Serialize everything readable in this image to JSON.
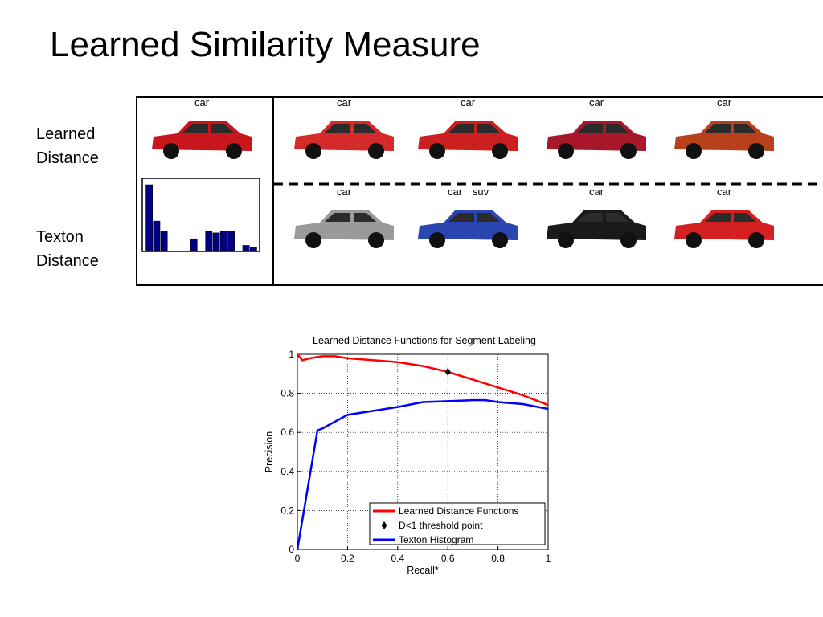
{
  "title": "Learned Similarity Measure",
  "rows": [
    {
      "label": "Learned Distance",
      "images": [
        [
          "car"
        ],
        [
          "car"
        ],
        [
          "car"
        ],
        [
          "car"
        ],
        [
          "car"
        ]
      ]
    },
    {
      "label": "Texton Distance",
      "images": [
        [
          "car"
        ],
        [
          "car",
          "suv"
        ],
        [
          "car"
        ],
        [
          "car"
        ]
      ]
    }
  ],
  "chart_data": [
    {
      "type": "line",
      "title": "Learned Distance Functions for Segment Labeling",
      "x_label": "Recall*",
      "y_label": "Precision",
      "xlim": [
        0,
        1
      ],
      "ylim": [
        0,
        1
      ],
      "xticks": [
        0,
        0.2,
        0.4,
        0.6,
        0.8,
        1
      ],
      "yticks": [
        0,
        0.2,
        0.4,
        0.6,
        0.8,
        1
      ],
      "grid": true,
      "legend": "lower right",
      "series": [
        {
          "name": "Learned Distance Functions",
          "color": "#ff0000",
          "style": "line",
          "x": [
            0,
            0.02,
            0.05,
            0.1,
            0.15,
            0.2,
            0.3,
            0.4,
            0.5,
            0.6,
            0.7,
            0.8,
            0.9,
            1
          ],
          "values": [
            1,
            0.97,
            0.98,
            0.99,
            0.99,
            0.98,
            0.97,
            0.96,
            0.94,
            0.91,
            0.87,
            0.83,
            0.79,
            0.74
          ]
        },
        {
          "name": "D<1 threshold point",
          "color": "#000000",
          "style": "marker",
          "x": [
            0.6
          ],
          "values": [
            0.91
          ]
        },
        {
          "name": "Texton Histogram",
          "color": "#0000ff",
          "style": "line",
          "x": [
            0,
            0.08,
            0.1,
            0.2,
            0.3,
            0.4,
            0.5,
            0.6,
            0.7,
            0.75,
            0.8,
            0.9,
            1
          ],
          "values": [
            0,
            0.61,
            0.62,
            0.69,
            0.71,
            0.73,
            0.755,
            0.76,
            0.765,
            0.765,
            0.755,
            0.745,
            0.72
          ]
        }
      ]
    },
    {
      "type": "bar",
      "color": "#000080",
      "values": [
        1,
        0.45,
        0.3,
        0,
        0,
        0,
        0.18,
        0,
        0.3,
        0.27,
        0.29,
        0.3,
        0,
        0.08,
        0.05
      ]
    }
  ]
}
